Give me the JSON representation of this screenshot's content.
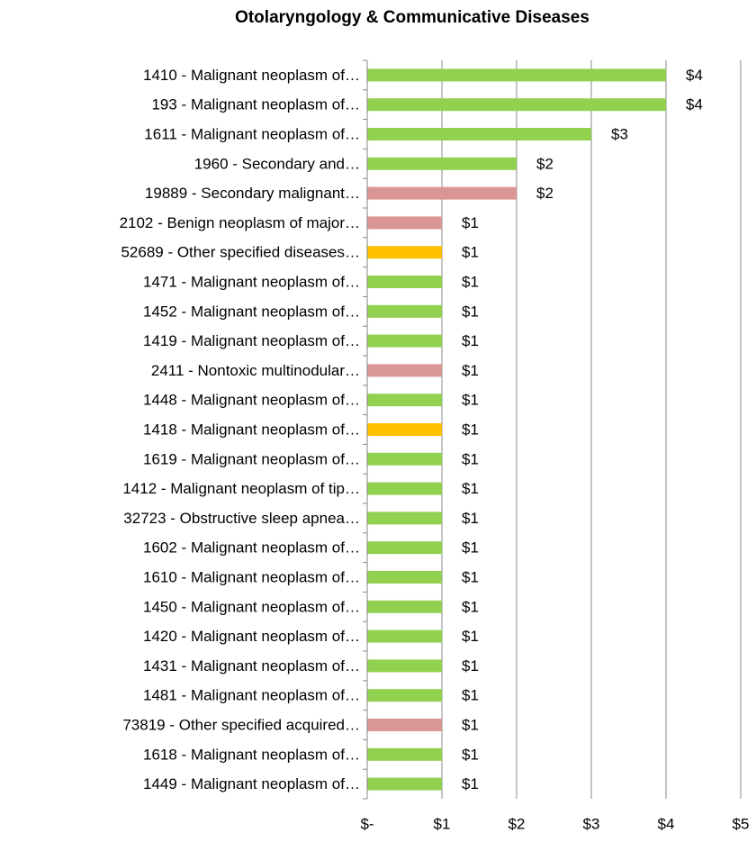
{
  "chart_data": {
    "type": "barh",
    "title": "Otolaryngology & Communicative Diseases",
    "categories": [
      "1410 - Malignant neoplasm of…",
      "193 - Malignant neoplasm of…",
      "1611 - Malignant neoplasm of…",
      "1960 - Secondary and…",
      "19889 - Secondary malignant…",
      "2102 - Benign neoplasm of major…",
      "52689 - Other specified diseases…",
      "1471 - Malignant neoplasm of…",
      "1452 - Malignant neoplasm of…",
      "1419 - Malignant neoplasm of…",
      "2411 - Nontoxic multinodular…",
      "1448 - Malignant neoplasm of…",
      "1418 - Malignant neoplasm of…",
      "1619 - Malignant neoplasm of…",
      "1412 - Malignant neoplasm of tip…",
      "32723 - Obstructive sleep apnea…",
      "1602 - Malignant neoplasm of…",
      "1610 - Malignant neoplasm of…",
      "1450 - Malignant neoplasm of…",
      "1420 - Malignant neoplasm of…",
      "1431 - Malignant neoplasm of…",
      "1481 - Malignant neoplasm of…",
      "73819 - Other specified acquired…",
      "1618 - Malignant neoplasm of…",
      "1449 - Malignant neoplasm of…"
    ],
    "values": [
      4,
      4,
      3,
      2,
      2,
      1,
      1,
      1,
      1,
      1,
      1,
      1,
      1,
      1,
      1,
      1,
      1,
      1,
      1,
      1,
      1,
      1,
      1,
      1,
      1
    ],
    "value_labels": [
      "$4",
      "$4",
      "$3",
      "$2",
      "$2",
      "$1",
      "$1",
      "$1",
      "$1",
      "$1",
      "$1",
      "$1",
      "$1",
      "$1",
      "$1",
      "$1",
      "$1",
      "$1",
      "$1",
      "$1",
      "$1",
      "$1",
      "$1",
      "$1",
      "$1"
    ],
    "colors": [
      "#92d050",
      "#92d050",
      "#92d050",
      "#92d050",
      "#da9694",
      "#da9694",
      "#ffc000",
      "#92d050",
      "#92d050",
      "#92d050",
      "#da9694",
      "#92d050",
      "#ffc000",
      "#92d050",
      "#92d050",
      "#92d050",
      "#92d050",
      "#92d050",
      "#92d050",
      "#92d050",
      "#92d050",
      "#92d050",
      "#da9694",
      "#92d050",
      "#92d050"
    ],
    "xlim": [
      0,
      5
    ],
    "xticks": [
      {
        "value": 0,
        "label": "$-"
      },
      {
        "value": 1,
        "label": "$1"
      },
      {
        "value": 2,
        "label": "$2"
      },
      {
        "value": 3,
        "label": "$3"
      },
      {
        "value": 4,
        "label": "$4"
      },
      {
        "value": 5,
        "label": "$5"
      }
    ],
    "grid": true
  }
}
